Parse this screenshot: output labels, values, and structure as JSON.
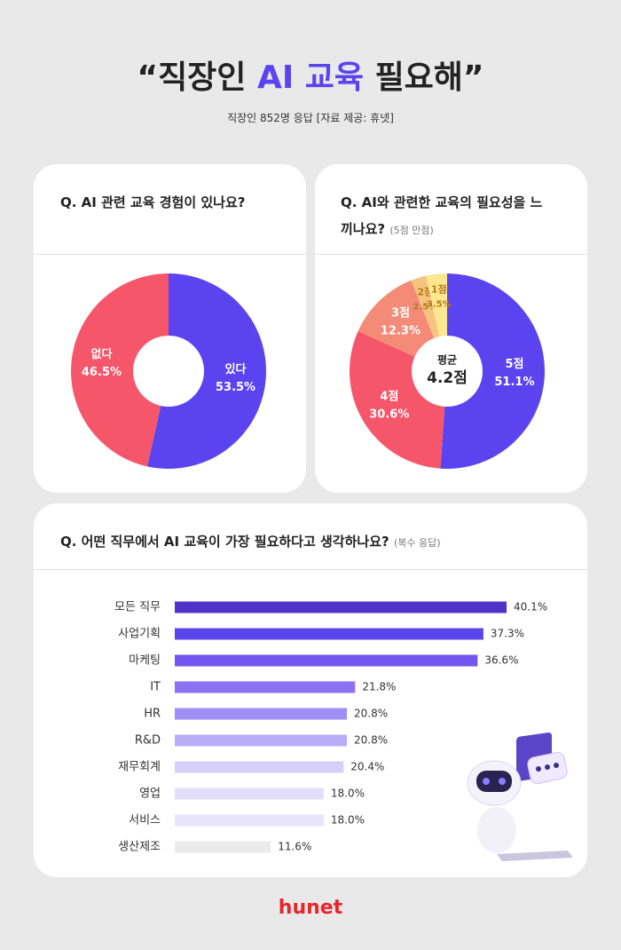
{
  "title_parts": [
    "“직장인",
    "AI 교육",
    "필요해”"
  ],
  "subtitle": "직장인 852명 응답 [자료 제공: 휴넷]",
  "footer": "hunet",
  "chart_data": [
    {
      "type": "pie",
      "title": "Q. AI 관련 교육 경험이 있나요?",
      "categories": [
        "있다",
        "없다"
      ],
      "values": [
        53.5,
        46.5
      ],
      "value_labels": [
        "53.5%",
        "46.5%"
      ],
      "colors": [
        "#5b44ef",
        "#f6566a"
      ]
    },
    {
      "type": "pie",
      "title": "Q. AI와 관련한 교육의 필요성을 느끼나요?",
      "subtitle": "(5점 만점)",
      "categories": [
        "5점",
        "4점",
        "3점",
        "2점",
        "1점"
      ],
      "values": [
        51.1,
        30.6,
        12.3,
        2.5,
        3.5
      ],
      "value_labels": [
        "51.1%",
        "30.6%",
        "12.3%",
        "2.5%",
        "3.5%"
      ],
      "colors": [
        "#5b44ef",
        "#f6566a",
        "#f38b78",
        "#f6c47f",
        "#fde78f"
      ],
      "center_title": "평균",
      "center_text": "4.2점"
    },
    {
      "type": "hbar",
      "title": "Q. 어떤 직무에서 AI 교육이 가장 필요하다고 생각하나요?",
      "subtitle": "(복수 응답)",
      "categories": [
        "모든 직무",
        "사업기획",
        "마케팅",
        "IT",
        "HR",
        "R&D",
        "재무회계",
        "영업",
        "서비스",
        "생산제조"
      ],
      "values": [
        40.1,
        37.3,
        36.6,
        21.8,
        20.8,
        20.8,
        20.4,
        18.0,
        18.0,
        11.6
      ],
      "value_labels": [
        "40.1%",
        "37.3%",
        "36.6%",
        "21.8%",
        "20.8%",
        "20.8%",
        "20.4%",
        "18.0%",
        "18.0%",
        "11.6%"
      ],
      "colors": [
        "#4f33c8",
        "#5a45ea",
        "#7356f0",
        "#8c72f2",
        "#a08ff5",
        "#b9adf7",
        "#d5cffa",
        "#e3dffb",
        "#e6e3fb",
        "#ebebeb"
      ]
    }
  ]
}
